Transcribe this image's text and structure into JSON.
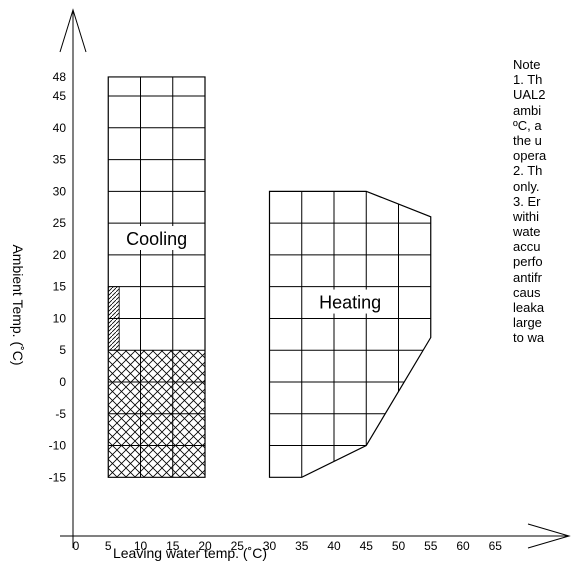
{
  "chart_data": {
    "type": "area",
    "xlabel": "Leaving water temp. (˚C)",
    "ylabel": "Ambient Temp. (˚C)",
    "x_ticks": [
      0,
      5,
      10,
      15,
      20,
      25,
      30,
      35,
      40,
      45,
      50,
      55,
      60,
      65
    ],
    "y_ticks": [
      -15,
      -10,
      -5,
      0,
      5,
      10,
      15,
      20,
      25,
      30,
      35,
      40,
      45,
      48
    ],
    "x_range": [
      0,
      65
    ],
    "y_range": [
      -15,
      48
    ],
    "regions": [
      {
        "name": "Cooling",
        "label": "Cooling",
        "polygon": [
          [
            5,
            -15
          ],
          [
            20,
            -15
          ],
          [
            20,
            48
          ],
          [
            5,
            48
          ]
        ],
        "grid_x": [
          10,
          15
        ],
        "grid_y": [
          -10,
          -5,
          0,
          5,
          10,
          15,
          20,
          25,
          30,
          35,
          40,
          45
        ],
        "crosshatch": {
          "x": [
            5,
            20
          ],
          "y": [
            -15,
            5
          ]
        },
        "hatch": {
          "x": [
            5,
            6.7
          ],
          "y": [
            5,
            15
          ]
        }
      },
      {
        "name": "Heating",
        "label": "Heating",
        "polygon": [
          [
            30,
            -15
          ],
          [
            35,
            -15
          ],
          [
            45,
            -10
          ],
          [
            55,
            7
          ],
          [
            55,
            26
          ],
          [
            45,
            30
          ],
          [
            30,
            30
          ]
        ],
        "grid_x": [
          35,
          40,
          45,
          50
        ],
        "grid_y": [
          -10,
          -5,
          0,
          5,
          10,
          15,
          20,
          25
        ]
      }
    ]
  },
  "notes": {
    "lines": [
      "Note",
      "1. Th",
      "UAL2",
      "ambi",
      "ºC, a",
      "the u",
      "opera",
      "2. Th",
      "only.",
      "3. Er",
      "withi",
      "wate",
      "accu",
      "perfo",
      "antifr",
      "caus",
      "leaka",
      "large",
      "to wa"
    ]
  }
}
